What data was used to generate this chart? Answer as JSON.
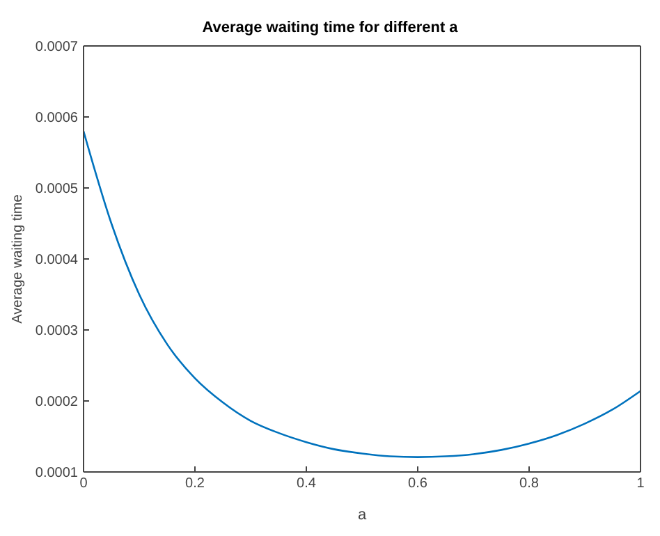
{
  "chart_data": {
    "type": "line",
    "title": "Average waiting time for different a",
    "xlabel": "a",
    "ylabel": "Average waiting time",
    "x": [
      0,
      0.05,
      0.1,
      0.15,
      0.2,
      0.25,
      0.3,
      0.35,
      0.4,
      0.45,
      0.5,
      0.55,
      0.6,
      0.65,
      0.7,
      0.75,
      0.8,
      0.85,
      0.9,
      0.95,
      1
    ],
    "series": [
      {
        "color": "#0072bd",
        "values": [
          0.00058,
          0.00045,
          0.00035,
          0.00028,
          0.000232,
          0.000198,
          0.000172,
          0.000155,
          0.000142,
          0.000132,
          0.000126,
          0.000122,
          0.000121,
          0.000122,
          0.000125,
          0.000131,
          0.00014,
          0.000152,
          0.000168,
          0.000188,
          0.000214
        ]
      }
    ],
    "xlim": [
      0,
      1
    ],
    "xticks": [
      0,
      0.2,
      0.4,
      0.6,
      0.8,
      1
    ],
    "ylim": [
      0.0001,
      0.0007
    ],
    "yticks": [
      0.0001,
      0.0002,
      0.0003,
      0.0004,
      0.0005,
      0.0006,
      0.0007
    ],
    "grid": false,
    "legend": false,
    "marker": "none",
    "line_style": "solid"
  }
}
